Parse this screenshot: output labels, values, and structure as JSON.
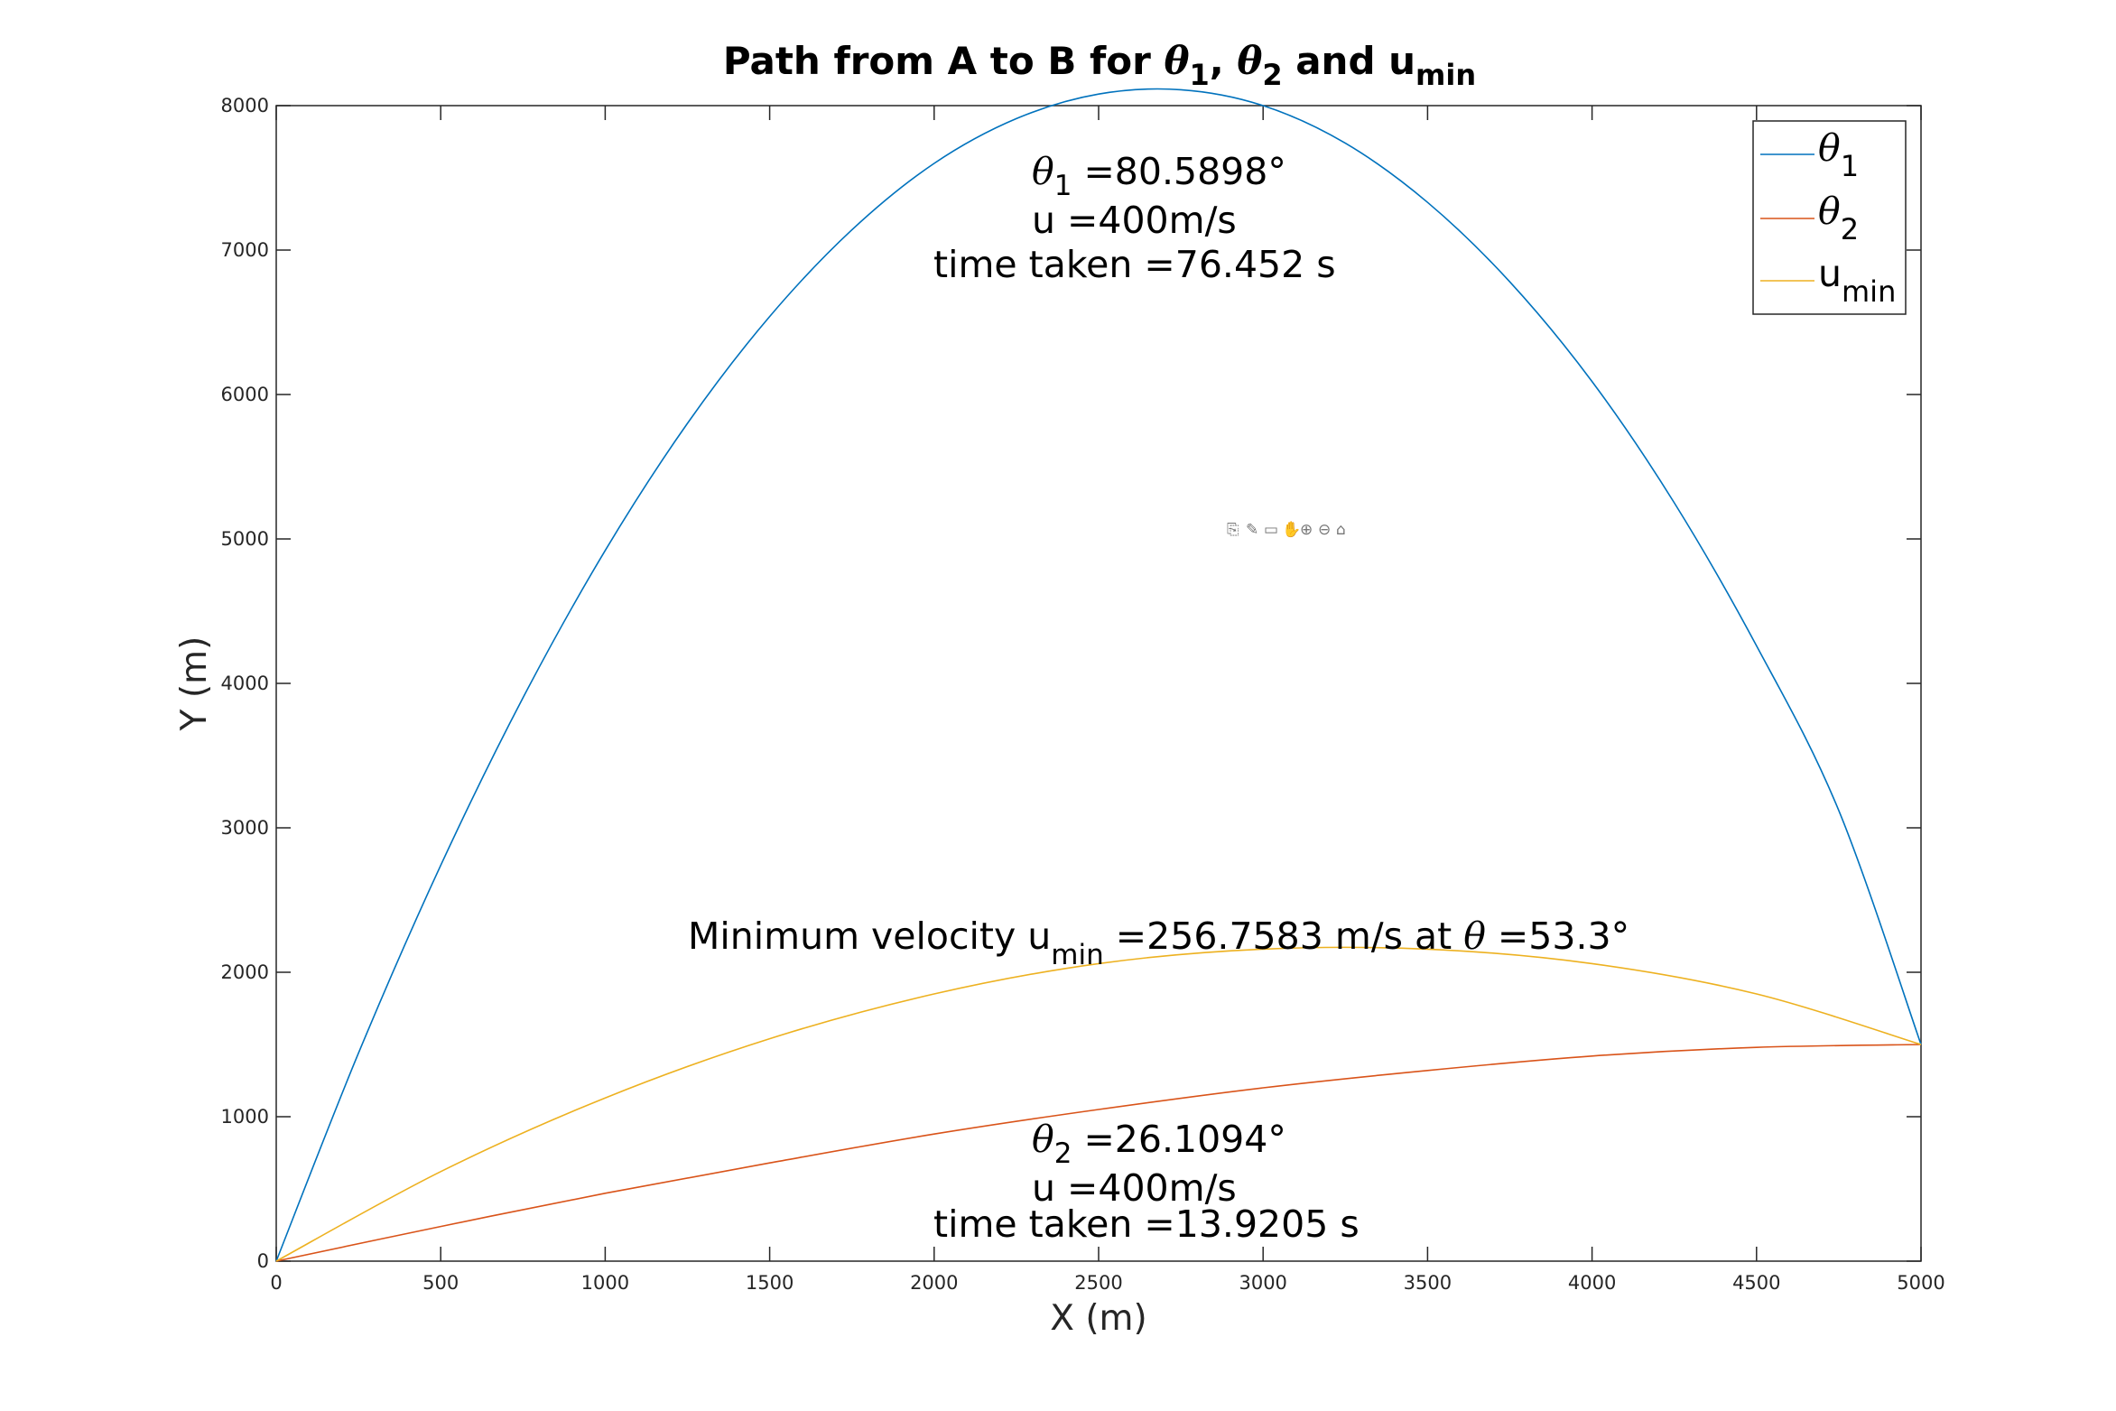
{
  "chart_data": {
    "type": "line",
    "title": {
      "pre": "Path from A to B for ",
      "theta": "θ",
      "sub1": "1",
      "sep1": ", ",
      "sub2": "2",
      "and": " and u",
      "submin": "min"
    },
    "xlabel": "X (m)",
    "ylabel": "Y (m)",
    "xlim": [
      0,
      5000
    ],
    "ylim": [
      0,
      8000
    ],
    "xticks": [
      "0",
      "500",
      "1000",
      "1500",
      "2000",
      "2500",
      "3000",
      "3500",
      "4000",
      "4500",
      "5000"
    ],
    "yticks": [
      "0",
      "1000",
      "2000",
      "3000",
      "4000",
      "5000",
      "6000",
      "7000",
      "8000"
    ],
    "grid": false,
    "legend_position": "top-right",
    "series": [
      {
        "name": "θ1",
        "color": "#0072BD",
        "angle_deg": 80.5898,
        "speed": 400,
        "x": [
          0,
          250,
          500,
          750,
          1000,
          1250,
          1500,
          1750,
          2000,
          2250,
          2500,
          2750,
          3000,
          3250,
          3500,
          3750,
          4000,
          4250,
          4500,
          4750,
          5000
        ],
        "y": [
          0,
          1440,
          2740,
          3900,
          4920,
          5800,
          6540,
          7140,
          7600,
          7910,
          8080,
          8110,
          8000,
          7740,
          7330,
          6780,
          6090,
          5250,
          4260,
          3120,
          1500
        ]
      },
      {
        "name": "θ2",
        "color": "#D95319",
        "angle_deg": 26.1094,
        "speed": 400,
        "x": [
          0,
          500,
          1000,
          1500,
          2000,
          2500,
          3000,
          3500,
          4000,
          4500,
          5000
        ],
        "y": [
          0,
          240,
          470,
          680,
          880,
          1050,
          1200,
          1320,
          1420,
          1480,
          1500
        ]
      },
      {
        "name": "umin",
        "color": "#EDB120",
        "angle_deg": 53.3,
        "speed": 256.7583,
        "x": [
          0,
          500,
          1000,
          1500,
          2000,
          2500,
          3000,
          3500,
          4000,
          4500,
          5000
        ],
        "y": [
          0,
          620,
          1130,
          1540,
          1850,
          2060,
          2160,
          2160,
          2060,
          1850,
          1500
        ]
      }
    ],
    "legend": [
      {
        "symbol": "θ",
        "sub": "1"
      },
      {
        "symbol": "θ",
        "sub": "2"
      },
      {
        "symbol": "u",
        "sub": "min"
      }
    ],
    "annotations": {
      "theta1": {
        "theta": "θ",
        "sub": "1",
        "value": " =80.5898°",
        "line2": "u =400m/s",
        "line3": "time taken =76.452 s"
      },
      "theta2": {
        "theta": "θ",
        "sub": "2",
        "value": " =26.1094°",
        "line2": "u =400m/s",
        "line3": "time taken =13.9205 s"
      },
      "umin": {
        "pre": "Minimum velocity u",
        "sub": "min",
        "mid": " =256.7583 m/s at ",
        "theta": "θ",
        "post": " =53.3°"
      }
    }
  },
  "toolbar": {
    "icons": [
      "export-icon",
      "brush-icon",
      "data-tips-icon",
      "pan-icon",
      "zoom-in-icon",
      "zoom-out-icon",
      "home-icon"
    ]
  }
}
